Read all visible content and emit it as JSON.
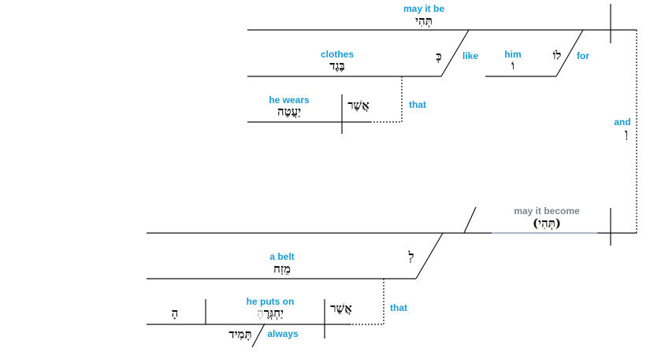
{
  "colors": {
    "english": "#1a9ad6",
    "implied": "#7b8590",
    "line": "#111111",
    "implied_line": "#a9b8c8"
  },
  "clause1": {
    "verb": {
      "en": "may it be",
      "he": "תְּהִי"
    },
    "like": {
      "en": "like",
      "he": "כְּ"
    },
    "object": {
      "en": "clothes",
      "he": "בֶּגֶד"
    },
    "for": {
      "en": "for",
      "he": "לוֹ"
    },
    "him": {
      "en": "him",
      "he": "וֹ"
    },
    "rel": {
      "en": "that",
      "he": "אֲשֶׁר",
      "verb_en": "he wears",
      "verb_he": "יַעֲטֶה"
    }
  },
  "conjunction": {
    "en": "and",
    "he": "וְ"
  },
  "clause2": {
    "verb": {
      "en": "may it become",
      "he": "(תְּהִי)"
    },
    "to": {
      "he": "לְ"
    },
    "object": {
      "en": "a belt",
      "he": "מֵזַח"
    },
    "rel": {
      "en": "that",
      "he": "אֲשֶׁר",
      "verb_en": "he puts on",
      "verb_he_main": "יַחְגְּרֶ",
      "verb_he_suffix": "הָ",
      "object_he": "הָ",
      "adverb_en": "always",
      "adverb_he": "תָּמִיד"
    }
  }
}
